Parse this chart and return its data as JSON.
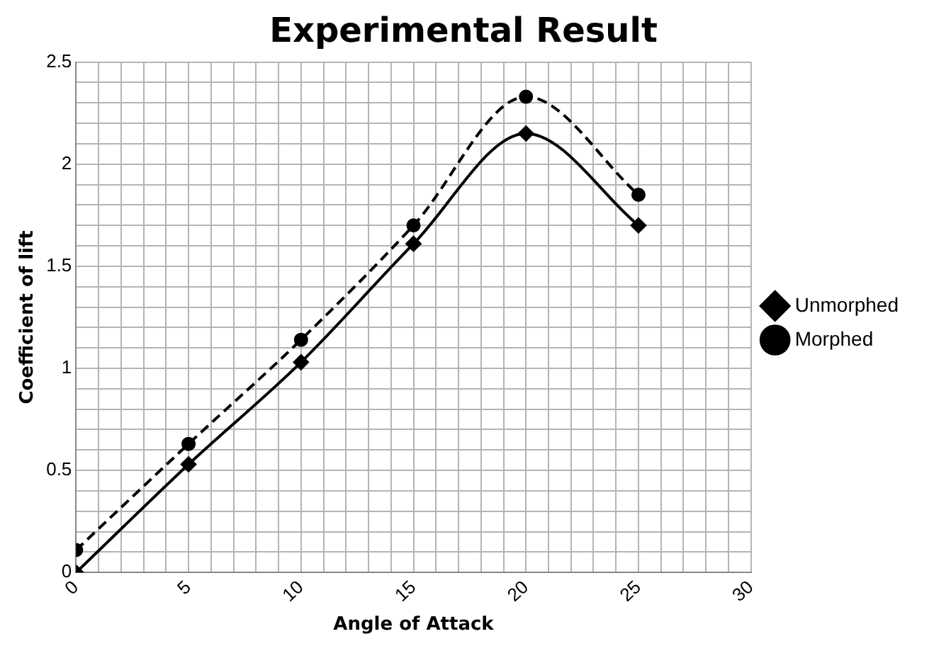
{
  "chart_data": {
    "type": "line",
    "title": "Experimental Result",
    "xlabel": "Angle of Attack",
    "ylabel": "Coefficient of lift",
    "x": [
      0,
      5,
      10,
      15,
      20,
      25
    ],
    "series": [
      {
        "name": "Unmorphed",
        "color": "#000000",
        "values": [
          0,
          0.53,
          1.03,
          1.61,
          2.15,
          1.7
        ],
        "marker": "diamond",
        "line_style": "solid"
      },
      {
        "name": "Morphed",
        "color": "#000000",
        "values": [
          0.11,
          0.63,
          1.14,
          1.7,
          2.33,
          1.85
        ],
        "marker": "circle",
        "line_style": "dashed"
      }
    ],
    "xlim": [
      0,
      30
    ],
    "xticks": [
      0,
      {
        "value": 1,
        "label": null
      },
      {
        "value": 2,
        "label": null
      },
      {
        "value": 3,
        "label": null
      },
      {
        "value": 4,
        "label": null
      },
      5,
      {
        "value": 6,
        "label": null
      },
      {
        "value": 7,
        "label": null
      },
      {
        "value": 8,
        "label": null
      },
      {
        "value": 9,
        "label": null
      },
      10,
      {
        "value": 11,
        "label": null
      },
      {
        "value": 12,
        "label": null
      },
      {
        "value": 13,
        "label": null
      },
      {
        "value": 14,
        "label": null
      },
      15,
      {
        "value": 16,
        "label": null
      },
      {
        "value": 17,
        "label": null
      },
      {
        "value": 18,
        "label": null
      },
      {
        "value": 19,
        "label": null
      },
      20,
      {
        "value": 21,
        "label": null
      },
      {
        "value": 22,
        "label": null
      },
      {
        "value": 23,
        "label": null
      },
      {
        "value": 24,
        "label": null
      },
      25,
      {
        "value": 26,
        "label": null
      },
      {
        "value": 27,
        "label": null
      },
      {
        "value": 28,
        "label": null
      },
      {
        "value": 29,
        "label": null
      },
      30
    ],
    "ylim": [
      0,
      2.5
    ],
    "yticks": [
      0,
      {
        "value": 0.1,
        "label": null
      },
      {
        "value": 0.2,
        "label": null
      },
      {
        "value": 0.3,
        "label": null
      },
      {
        "value": 0.4,
        "label": null
      },
      0.5,
      {
        "value": 0.6,
        "label": null
      },
      {
        "value": 0.7,
        "label": null
      },
      {
        "value": 0.8,
        "label": null
      },
      {
        "value": 0.9,
        "label": null
      },
      1,
      {
        "value": 1.1,
        "label": null
      },
      {
        "value": 1.2,
        "label": null
      },
      {
        "value": 1.3,
        "label": null
      },
      {
        "value": 1.4,
        "label": null
      },
      1.5,
      {
        "value": 1.6,
        "label": null
      },
      {
        "value": 1.7,
        "label": null
      },
      {
        "value": 1.8,
        "label": null
      },
      {
        "value": 1.9,
        "label": null
      },
      2,
      {
        "value": 2.1,
        "label": null
      },
      {
        "value": 2.2,
        "label": null
      },
      {
        "value": 2.3,
        "label": null
      },
      {
        "value": 2.4,
        "label": null
      },
      2.5
    ],
    "grid": true,
    "legend": "right"
  }
}
